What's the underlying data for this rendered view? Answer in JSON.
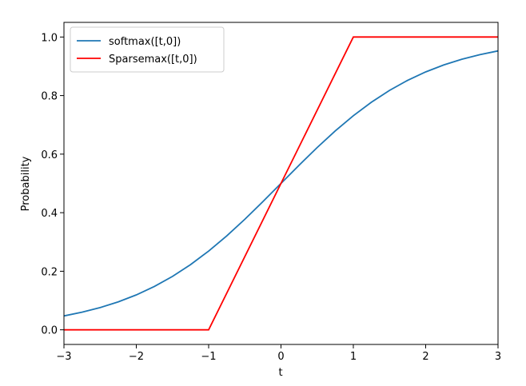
{
  "chart_data": {
    "type": "line",
    "xlabel": "t",
    "ylabel": "Probability",
    "xlim": [
      -3,
      3
    ],
    "ylim": [
      -0.05,
      1.05
    ],
    "xticks": [
      {
        "value": -3,
        "label": "−3"
      },
      {
        "value": -2,
        "label": "−2"
      },
      {
        "value": -1,
        "label": "−1"
      },
      0,
      1,
      2,
      3
    ],
    "yticks": [
      {
        "value": 0,
        "label": "0.0"
      },
      0.2,
      0.4,
      0.6,
      0.8,
      {
        "value": 1,
        "label": "1.0"
      }
    ],
    "legend": "upper left",
    "series": [
      {
        "name": "softmax([t,0])",
        "color": "#1f77b4",
        "x": [
          -3,
          -2.75,
          -2.5,
          -2.25,
          -2,
          -1.75,
          -1.5,
          -1.25,
          -1,
          -0.75,
          -0.5,
          -0.25,
          0,
          0.25,
          0.5,
          0.75,
          1,
          1.25,
          1.5,
          1.75,
          2,
          2.25,
          2.5,
          2.75,
          3
        ],
        "values": [
          0.0474,
          0.0601,
          0.0759,
          0.0953,
          0.1192,
          0.148,
          0.1824,
          0.2227,
          0.2689,
          0.3208,
          0.3775,
          0.4378,
          0.5,
          0.5622,
          0.6225,
          0.6792,
          0.7311,
          0.7773,
          0.8176,
          0.852,
          0.8808,
          0.9047,
          0.9241,
          0.9399,
          0.9526
        ]
      },
      {
        "name": "Sparsemax([t,0])",
        "color": "#ff0000",
        "x": [
          -3,
          -1,
          1,
          3
        ],
        "values": [
          0,
          0,
          1,
          1
        ]
      }
    ]
  }
}
